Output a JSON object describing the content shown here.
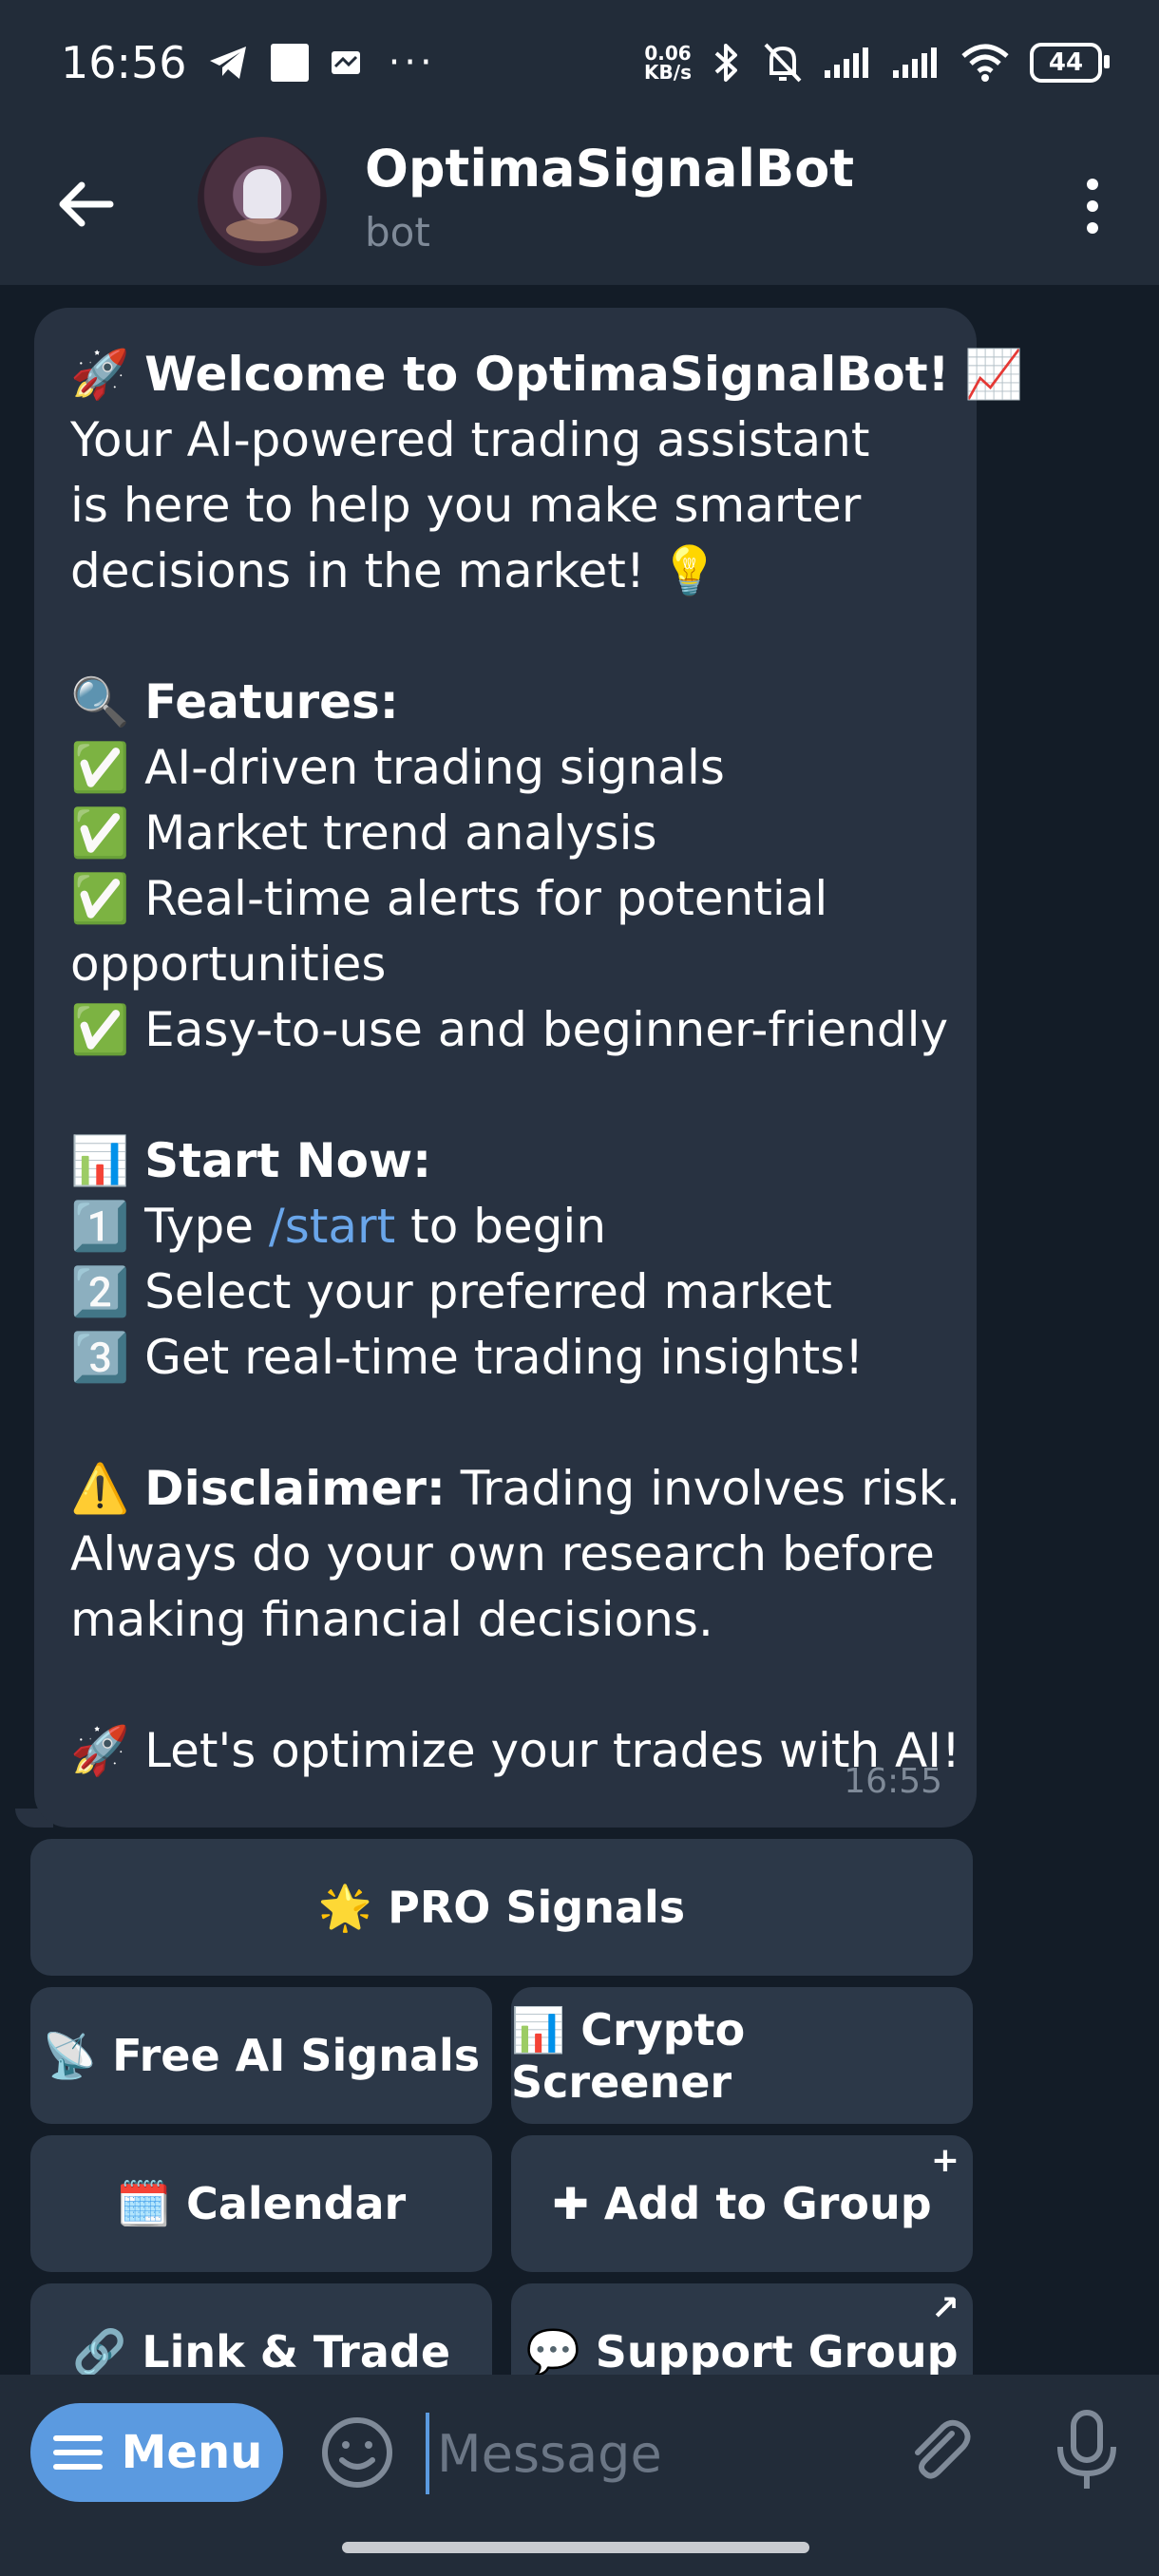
{
  "status_bar": {
    "time": "16:56",
    "net_speed_value": "0.06",
    "net_speed_unit": "KB/s",
    "battery": "44",
    "dots": "···"
  },
  "header": {
    "title": "OptimaSignalBot",
    "subtitle": "bot"
  },
  "message": {
    "line1_emoji": "🚀",
    "line1_bold": "Welcome to OptimaSignalBot!",
    "line1_emoji2": "📈",
    "line2": "Your AI-powered trading assistant",
    "line3": "is here to help you make smarter",
    "line4": "decisions in the market! 💡",
    "features_emoji": "🔍",
    "features_title": "Features:",
    "features": [
      "✅ AI-driven trading signals",
      "✅ Market trend analysis",
      "✅ Real-time alerts for potential",
      "opportunities",
      "✅ Easy-to-use and beginner-friendly"
    ],
    "start_emoji": "📊",
    "start_title": "Start Now:",
    "step1_prefix": "1️⃣ Type ",
    "step1_cmd": "/start",
    "step1_suffix": " to begin",
    "step2": "2️⃣ Select your preferred market",
    "step3": "3️⃣ Get real-time trading insights!",
    "disclaimer_emoji": "⚠️",
    "disclaimer_title": "Disclaimer:",
    "disclaimer_text": " Trading involves risk.",
    "disclaimer_line2": "Always do your own research before",
    "disclaimer_line3": "making financial decisions.",
    "closing": "🚀 Let's optimize your trades with AI!",
    "time": "16:55"
  },
  "keyboard": {
    "pro_signals": "🌟 PRO Signals",
    "free_ai_signals": "📡 Free AI Signals",
    "crypto_screener": "📊 Crypto Screener",
    "calendar": "🗓️ Calendar",
    "add_to_group": "✚ Add to Group",
    "add_to_group_corner": "+",
    "link_trade": "🔗 Link & Trade",
    "support_group": "💬 Support Group",
    "support_group_corner": "↗"
  },
  "input_bar": {
    "menu_label": "Menu",
    "message_placeholder": "Message"
  },
  "colors": {
    "header_bg": "#222c39",
    "bubble_bg": "#283241",
    "link": "#6aa6ea",
    "menu_button": "#5b9ae0"
  },
  "icons": [
    "back-arrow-icon",
    "more-vertical-icon",
    "hamburger-icon",
    "emoji-icon",
    "paperclip-icon",
    "microphone-icon",
    "telegram-icon",
    "wifi-icon",
    "bluetooth-icon",
    "mute-icon",
    "signal-icon"
  ]
}
